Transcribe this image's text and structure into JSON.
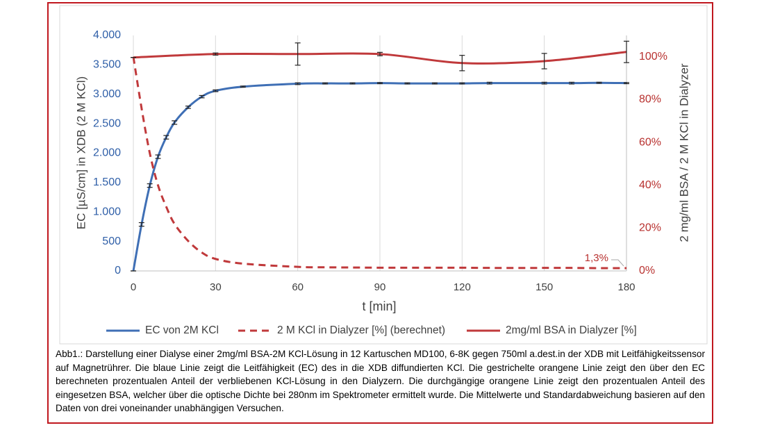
{
  "chart_data": {
    "type": "line",
    "x_label": "t [min]",
    "y_label": "EC [µS/cm] in XDB (2 M KCl)",
    "y2_label": "2 mg/ml BSA / 2 M KCl in Dialyzer",
    "xlim": [
      0,
      180
    ],
    "xticks": [
      0,
      30,
      60,
      90,
      120,
      150,
      180
    ],
    "ylim": [
      0,
      4000
    ],
    "yticks": [
      0,
      500,
      {
        "value": 1000,
        "label": "1.000"
      },
      {
        "value": 1500,
        "label": "1.500"
      },
      {
        "value": 2000,
        "label": "2.000"
      },
      {
        "value": 2500,
        "label": "2.500"
      },
      {
        "value": 3000,
        "label": "3.000"
      },
      {
        "value": 3500,
        "label": "3.500"
      },
      {
        "value": 4000,
        "label": "4.000"
      }
    ],
    "y2lim": [
      0,
      110
    ],
    "y2ticks": [
      {
        "value": 0,
        "label": "0%"
      },
      {
        "value": 20,
        "label": "20%"
      },
      {
        "value": 40,
        "label": "40%"
      },
      {
        "value": 60,
        "label": "60%"
      },
      {
        "value": 80,
        "label": "80%"
      },
      {
        "value": 100,
        "label": "100%"
      }
    ],
    "grid": "x",
    "legend": "bottom",
    "series": [
      {
        "name": "EC von 2M KCl",
        "color": "#3f6fb5",
        "dash": false,
        "smooth": true,
        "x": [
          0,
          3,
          6,
          9,
          12,
          15,
          20,
          25,
          30,
          40,
          60,
          70,
          80,
          90,
          100,
          110,
          120,
          130,
          150,
          160,
          170,
          180
        ],
        "values": [
          0,
          790,
          1450,
          1940,
          2270,
          2520,
          2780,
          2960,
          3060,
          3130,
          3180,
          3185,
          3185,
          3190,
          3185,
          3185,
          3185,
          3190,
          3190,
          3190,
          3195,
          3190
        ],
        "errors": [
          0,
          30,
          30,
          30,
          30,
          30,
          20,
          20,
          15,
          10,
          15,
          10,
          10,
          10,
          10,
          10,
          10,
          15,
          15,
          15,
          10,
          10
        ]
      },
      {
        "name": "2 M KCl in Dialyzer [%] (berechnet)",
        "color": "#c0393b",
        "dash": true,
        "smooth": true,
        "axis": "y2",
        "x": [
          0,
          3,
          6,
          9,
          12,
          15,
          20,
          25,
          30,
          40,
          60,
          70,
          80,
          90,
          100,
          110,
          120,
          130,
          150,
          160,
          170,
          180
        ],
        "values": [
          100,
          76,
          55,
          40,
          30,
          22,
          14,
          8.6,
          5.6,
          3.4,
          1.9,
          1.7,
          1.6,
          1.5,
          1.5,
          1.5,
          1.5,
          1.4,
          1.4,
          1.4,
          1.3,
          1.3
        ]
      },
      {
        "name": "2mg/ml BSA in Dialyzer [%]",
        "color": "#c0393b",
        "dash": false,
        "smooth": true,
        "axis": "y2",
        "x": [
          0,
          30,
          60,
          90,
          120,
          150,
          180
        ],
        "values": [
          99.7,
          101.3,
          101.3,
          101.3,
          97.1,
          98,
          102.3
        ],
        "errors": [
          0,
          0.5,
          5.2,
          0.8,
          3.6,
          3.6,
          5
        ]
      }
    ],
    "annotations": [
      {
        "text": "1,3%",
        "series": 1
      }
    ],
    "caption": "Abb1.: Darstellung einer Dialyse einer 2mg/ml BSA-2M KCl-Lösung in 12 Kartuschen MD100, 6-8K gegen 750ml a.dest.in der XDB mit Leitfähigkeitssensor auf Magnetrührer. Die blaue Linie zeigt die Leitfähigkeit (EC) des in die XDB diffundierten KCl. Die gestrichelte orangene Linie zeigt den über den EC berechneten prozentualen Anteil der verbliebenen KCl-Lösung in den Dialyzern. Die durchgängige orangene Linie zeigt den prozentualen Anteil des eingesetzen BSA, welcher über die optische Dichte bei 280nm im Spektrometer ermittelt wurde.  Die Mittelwerte und Standardabweichung basieren auf den Daten von drei voneinander unabhängigen Versuchen."
  }
}
